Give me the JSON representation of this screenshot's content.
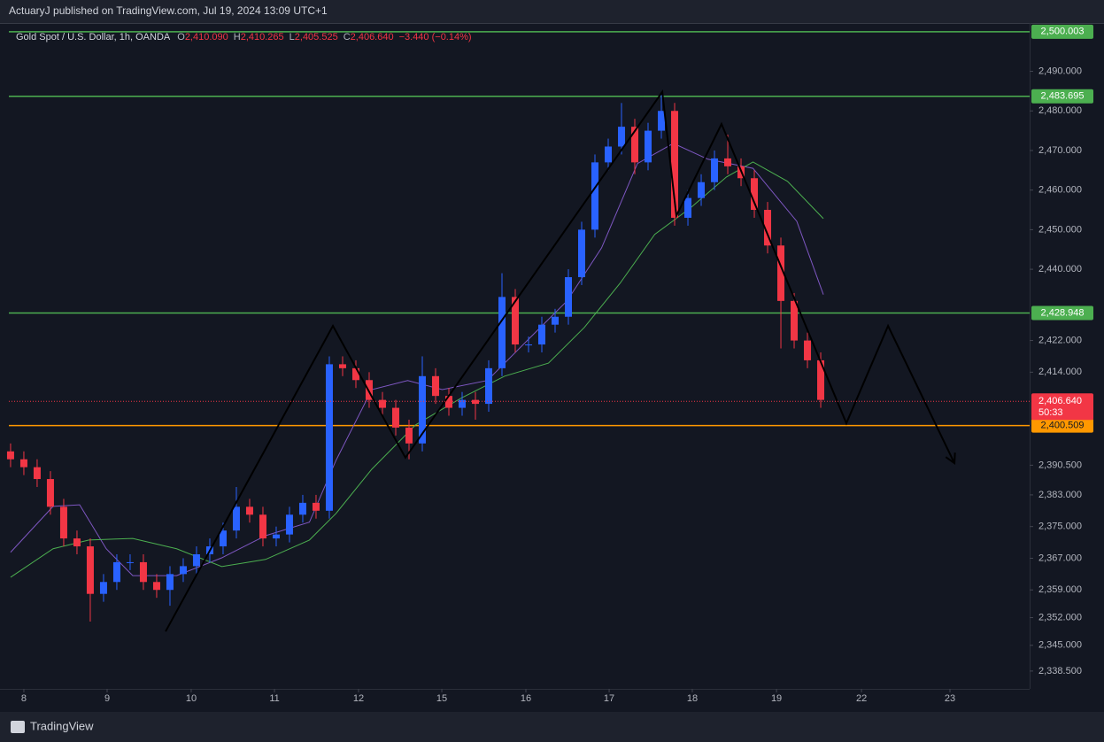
{
  "header": {
    "publisher": "ActuaryJ published on TradingView.com, Jul 19, 2024 13:09 UTC+1"
  },
  "legend": {
    "symbol": "Gold Spot / U.S. Dollar, 1h, OANDA",
    "items": [
      {
        "key": "O",
        "value": "2,410.090"
      },
      {
        "key": "H",
        "value": "2,410.265"
      },
      {
        "key": "L",
        "value": "2,405.525"
      },
      {
        "key": "C",
        "value": "2,406.640"
      }
    ],
    "change": "−3.440 (−0.14%)"
  },
  "footer": {
    "brand": "TradingView"
  },
  "chart_data": {
    "type": "candlestick",
    "up_color": "#2962ff",
    "down_color": "#f23645",
    "xlim": [
      -0.13,
      76.73
    ],
    "ylim": [
      2334.0,
      2502.2
    ],
    "xticks": [
      {
        "value": 1.0,
        "label": "8"
      },
      {
        "value": 7.27,
        "label": "9"
      },
      {
        "value": 13.6,
        "label": "10"
      },
      {
        "value": 19.87,
        "label": "11"
      },
      {
        "value": 26.2,
        "label": "12"
      },
      {
        "value": 32.47,
        "label": "15"
      },
      {
        "value": 38.8,
        "label": "16"
      },
      {
        "value": 45.07,
        "label": "17"
      },
      {
        "value": 51.33,
        "label": "18"
      },
      {
        "value": 57.67,
        "label": "19"
      },
      {
        "value": 64.07,
        "label": "22"
      },
      {
        "value": 70.73,
        "label": "23"
      }
    ],
    "yticks": [
      {
        "value": 2490,
        "label": "2,490.000"
      },
      {
        "value": 2480,
        "label": "2,480.000"
      },
      {
        "value": 2470,
        "label": "2,470.000"
      },
      {
        "value": 2460,
        "label": "2,460.000"
      },
      {
        "value": 2450,
        "label": "2,450.000"
      },
      {
        "value": 2440,
        "label": "2,440.000"
      },
      {
        "value": 2422,
        "label": "2,422.000"
      },
      {
        "value": 2414,
        "label": "2,414.000"
      },
      {
        "value": 2390.5,
        "label": "2,390.500"
      },
      {
        "value": 2383,
        "label": "2,383.000"
      },
      {
        "value": 2375,
        "label": "2,375.000"
      },
      {
        "value": 2367,
        "label": "2,367.000"
      },
      {
        "value": 2359,
        "label": "2,359.000"
      },
      {
        "value": 2352,
        "label": "2,352.000"
      },
      {
        "value": 2345,
        "label": "2,345.000"
      },
      {
        "value": 2338.5,
        "label": "2,338.500"
      }
    ],
    "open": [
      2394,
      2392,
      2390,
      2387,
      2380,
      2372,
      2370,
      2358,
      2361,
      2366,
      2366,
      2361,
      2359,
      2363,
      2365,
      2368,
      2370,
      2374,
      2380,
      2378,
      2372,
      2373,
      2378,
      2381,
      2379,
      2416,
      2415,
      2412,
      2407,
      2405,
      2400,
      2396,
      2413,
      2408,
      2405,
      2407,
      2406,
      2415,
      2433,
      2421,
      2421,
      2426,
      2428,
      2438,
      2450,
      2467,
      2471,
      2476,
      2467,
      2475,
      2480,
      2453,
      2458,
      2462,
      2468,
      2466,
      2463,
      2455,
      2446,
      2432,
      2422,
      2417
    ],
    "high": [
      2396,
      2394,
      2392,
      2389,
      2382,
      2374,
      2372,
      2363,
      2368,
      2368,
      2368,
      2363,
      2365,
      2367,
      2370,
      2372,
      2376,
      2385,
      2382,
      2380,
      2375,
      2380,
      2383,
      2383,
      2418,
      2418,
      2417,
      2414,
      2409,
      2407,
      2402,
      2418,
      2415,
      2410,
      2409,
      2409,
      2417,
      2439,
      2435,
      2423,
      2428,
      2430,
      2440,
      2452,
      2469,
      2473,
      2482,
      2478,
      2477,
      2484,
      2482,
      2460,
      2464,
      2470,
      2474,
      2468,
      2465,
      2457,
      2448,
      2434,
      2424,
      2419
    ],
    "low": [
      2390,
      2388,
      2385,
      2378,
      2370,
      2368,
      2351,
      2356,
      2359,
      2364,
      2359,
      2357,
      2355,
      2361,
      2363,
      2366,
      2368,
      2372,
      2376,
      2370,
      2370,
      2371,
      2376,
      2377,
      2377,
      2413,
      2410,
      2405,
      2403,
      2398,
      2392,
      2394,
      2406,
      2403,
      2403,
      2402,
      2404,
      2413,
      2419,
      2419,
      2419,
      2424,
      2426,
      2436,
      2448,
      2465,
      2469,
      2464,
      2465,
      2473,
      2451,
      2451,
      2456,
      2460,
      2464,
      2461,
      2453,
      2444,
      2420,
      2420,
      2415,
      2405
    ],
    "close": [
      2392,
      2390,
      2387,
      2380,
      2372,
      2370,
      2358,
      2361,
      2366,
      2366,
      2361,
      2359,
      2363,
      2365,
      2368,
      2370,
      2374,
      2380,
      2378,
      2372,
      2373,
      2378,
      2381,
      2379,
      2416,
      2415,
      2412,
      2407,
      2405,
      2400,
      2396,
      2413,
      2408,
      2405,
      2407,
      2406,
      2415,
      2433,
      2421,
      2421,
      2426,
      2428,
      2438,
      2450,
      2467,
      2471,
      2476,
      2467,
      2475,
      2480,
      2453,
      2458,
      2462,
      2468,
      2466,
      2463,
      2455,
      2446,
      2432,
      2422,
      2417,
      2407
    ],
    "lines": [
      {
        "color": "#7e57c2",
        "x": [
          0,
          3.2,
          5.2,
          7.2,
          9.2,
          12.5,
          15.9,
          19.2,
          22.5,
          24.5,
          27.2,
          29.9,
          32.5,
          35.9,
          39.2,
          41.9,
          44.5,
          47.2,
          49.9,
          52.5,
          55.9,
          59.2,
          61.2
        ],
        "values": [
          2368.5,
          2380.1,
          2380.5,
          2369.4,
          2362.6,
          2362.6,
          2367.1,
          2372.7,
          2376.1,
          2391.7,
          2409.6,
          2411.9,
          2409.6,
          2411.9,
          2423.0,
          2432.0,
          2445.4,
          2466.7,
          2471.8,
          2467.8,
          2465.5,
          2452.1,
          2433.6
        ]
      },
      {
        "color": "#4caf50",
        "x": [
          0,
          3.2,
          5.9,
          9.2,
          12.5,
          15.9,
          19.2,
          22.5,
          24.5,
          27.2,
          30.5,
          33.9,
          37.2,
          40.5,
          43.2,
          45.9,
          48.5,
          51.2,
          53.9,
          55.9,
          58.5,
          61.2
        ],
        "values": [
          2362.2,
          2369.4,
          2371.6,
          2372.0,
          2369.4,
          2364.9,
          2366.7,
          2371.6,
          2378.3,
          2389.5,
          2400.7,
          2407.4,
          2413.0,
          2416.3,
          2425.3,
          2436.5,
          2448.8,
          2455.5,
          2463.3,
          2467.1,
          2462.2,
          2452.8
        ]
      }
    ],
    "zigzag": {
      "color": "#000000",
      "x": [
        11.67,
        24.27,
        29.73,
        49.07,
        50.13,
        53.53,
        62.93,
        66.07,
        71.07
      ],
      "values": [
        2348.5,
        2425.7,
        2392.4,
        2484.8,
        2453.5,
        2476.7,
        2401.1,
        2425.7,
        2391.0
      ]
    },
    "levels": [
      {
        "value": 2500.003,
        "label": "2,500.003",
        "color": "#4caf50"
      },
      {
        "value": 2483.695,
        "label": "2,483.695",
        "color": "#4caf50"
      },
      {
        "value": 2428.948,
        "label": "2,428.948",
        "color": "#4caf50"
      },
      {
        "value": 2400.509,
        "label": "2,400.509",
        "color": "#ff9800"
      }
    ],
    "last_price": {
      "value": 2406.64,
      "label": "2,406.640",
      "countdown": "50:33",
      "color": "#f23645"
    }
  }
}
